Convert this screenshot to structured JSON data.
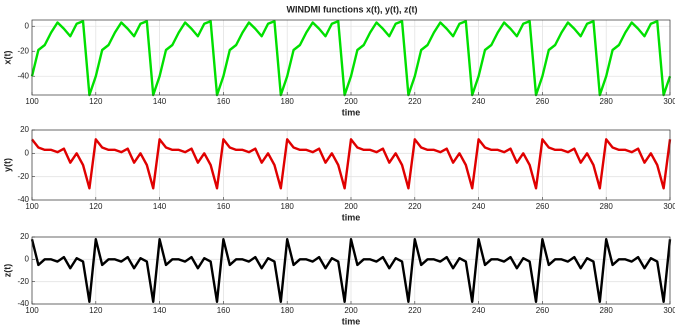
{
  "chart_data": [
    {
      "type": "line",
      "title": "WINDMI functions x(t), y(t), z(t)",
      "xlabel": "time",
      "ylabel": "x(t)",
      "xlim": [
        100,
        300
      ],
      "xticks": [
        100,
        120,
        140,
        160,
        180,
        200,
        220,
        240,
        260,
        280,
        300
      ],
      "ylim": [
        -55,
        5
      ],
      "yticks": [
        -40,
        -20,
        0
      ],
      "grid": true,
      "x": [
        100,
        102,
        104,
        106,
        108,
        110,
        112,
        114,
        116,
        118,
        120,
        122,
        124,
        126,
        128,
        130,
        132,
        134,
        136,
        138,
        140,
        142,
        144,
        146,
        148,
        150,
        152,
        154,
        156,
        158,
        160,
        162,
        164,
        166,
        168,
        170,
        172,
        174,
        176,
        178,
        180,
        182,
        184,
        186,
        188,
        190,
        192,
        194,
        196,
        198,
        200,
        202,
        204,
        206,
        208,
        210,
        212,
        214,
        216,
        218,
        220,
        222,
        224,
        226,
        228,
        230,
        232,
        234,
        236,
        238,
        240,
        242,
        244,
        246,
        248,
        250,
        252,
        254,
        256,
        258,
        260,
        262,
        264,
        266,
        268,
        270,
        272,
        274,
        276,
        278,
        280,
        282,
        284,
        286,
        288,
        290,
        292,
        294,
        296,
        298,
        300
      ],
      "series": [
        {
          "name": "x(t)",
          "color": "#00e000",
          "values": [
            -40,
            -19,
            -15,
            -5,
            3,
            -2,
            -8,
            2,
            4,
            -55,
            -40,
            -19,
            -15,
            -5,
            3,
            -2,
            -8,
            2,
            4,
            -55,
            -40,
            -19,
            -15,
            -5,
            3,
            -2,
            -8,
            2,
            4,
            -55,
            -40,
            -19,
            -15,
            -5,
            3,
            -2,
            -8,
            2,
            4,
            -55,
            -40,
            -19,
            -15,
            -5,
            3,
            -2,
            -8,
            2,
            4,
            -55,
            -40,
            -19,
            -15,
            -5,
            3,
            -2,
            -8,
            2,
            4,
            -55,
            -40,
            -19,
            -15,
            -5,
            3,
            -2,
            -8,
            2,
            4,
            -55,
            -40,
            -19,
            -15,
            -5,
            3,
            -2,
            -8,
            2,
            4,
            -55,
            -40,
            -19,
            -15,
            -5,
            3,
            -2,
            -8,
            2,
            4,
            -55,
            -40,
            -19,
            -15,
            -5,
            3,
            -2,
            -8,
            2,
            4,
            -55,
            -40
          ]
        }
      ]
    },
    {
      "type": "line",
      "xlabel": "time",
      "ylabel": "y(t)",
      "xlim": [
        100,
        300
      ],
      "xticks": [
        100,
        120,
        140,
        160,
        180,
        200,
        220,
        240,
        260,
        280,
        300
      ],
      "ylim": [
        -40,
        20
      ],
      "yticks": [
        -40,
        -20,
        0,
        20
      ],
      "grid": true,
      "x": [
        100,
        102,
        104,
        106,
        108,
        110,
        112,
        114,
        116,
        118,
        120,
        122,
        124,
        126,
        128,
        130,
        132,
        134,
        136,
        138,
        140,
        142,
        144,
        146,
        148,
        150,
        152,
        154,
        156,
        158,
        160,
        162,
        164,
        166,
        168,
        170,
        172,
        174,
        176,
        178,
        180,
        182,
        184,
        186,
        188,
        190,
        192,
        194,
        196,
        198,
        200,
        202,
        204,
        206,
        208,
        210,
        212,
        214,
        216,
        218,
        220,
        222,
        224,
        226,
        228,
        230,
        232,
        234,
        236,
        238,
        240,
        242,
        244,
        246,
        248,
        250,
        252,
        254,
        256,
        258,
        260,
        262,
        264,
        266,
        268,
        270,
        272,
        274,
        276,
        278,
        280,
        282,
        284,
        286,
        288,
        290,
        292,
        294,
        296,
        298,
        300
      ],
      "series": [
        {
          "name": "y(t)",
          "color": "#e00000",
          "values": [
            12,
            5,
            3,
            3,
            1,
            4,
            -8,
            0,
            -10,
            -30,
            12,
            5,
            3,
            3,
            1,
            4,
            -8,
            0,
            -10,
            -30,
            12,
            5,
            3,
            3,
            1,
            4,
            -8,
            0,
            -10,
            -30,
            12,
            5,
            3,
            3,
            1,
            4,
            -8,
            0,
            -10,
            -30,
            12,
            5,
            3,
            3,
            1,
            4,
            -8,
            0,
            -10,
            -30,
            12,
            5,
            3,
            3,
            1,
            4,
            -8,
            0,
            -10,
            -30,
            12,
            5,
            3,
            3,
            1,
            4,
            -8,
            0,
            -10,
            -30,
            12,
            5,
            3,
            3,
            1,
            4,
            -8,
            0,
            -10,
            -30,
            12,
            5,
            3,
            3,
            1,
            4,
            -8,
            0,
            -10,
            -30,
            12,
            5,
            3,
            3,
            1,
            4,
            -8,
            0,
            -10,
            -30,
            12
          ]
        }
      ]
    },
    {
      "type": "line",
      "xlabel": "time",
      "ylabel": "z(t)",
      "xlim": [
        100,
        300
      ],
      "xticks": [
        100,
        120,
        140,
        160,
        180,
        200,
        220,
        240,
        260,
        280,
        300
      ],
      "ylim": [
        -40,
        20
      ],
      "yticks": [
        -40,
        -20,
        0,
        20
      ],
      "grid": true,
      "x": [
        100,
        102,
        104,
        106,
        108,
        110,
        112,
        114,
        116,
        118,
        120,
        122,
        124,
        126,
        128,
        130,
        132,
        134,
        136,
        138,
        140,
        142,
        144,
        146,
        148,
        150,
        152,
        154,
        156,
        158,
        160,
        162,
        164,
        166,
        168,
        170,
        172,
        174,
        176,
        178,
        180,
        182,
        184,
        186,
        188,
        190,
        192,
        194,
        196,
        198,
        200,
        202,
        204,
        206,
        208,
        210,
        212,
        214,
        216,
        218,
        220,
        222,
        224,
        226,
        228,
        230,
        232,
        234,
        236,
        238,
        240,
        242,
        244,
        246,
        248,
        250,
        252,
        254,
        256,
        258,
        260,
        262,
        264,
        266,
        268,
        270,
        272,
        274,
        276,
        278,
        280,
        282,
        284,
        286,
        288,
        290,
        292,
        294,
        296,
        298,
        300
      ],
      "series": [
        {
          "name": "z(t)",
          "color": "#000000",
          "values": [
            18,
            -5,
            0,
            0,
            -2,
            2,
            -8,
            1,
            -2,
            -38,
            18,
            -5,
            0,
            0,
            -2,
            2,
            -8,
            1,
            -2,
            -38,
            18,
            -5,
            0,
            0,
            -2,
            2,
            -8,
            1,
            -2,
            -38,
            18,
            -5,
            0,
            0,
            -2,
            2,
            -8,
            1,
            -2,
            -38,
            18,
            -5,
            0,
            0,
            -2,
            2,
            -8,
            1,
            -2,
            -38,
            18,
            -5,
            0,
            0,
            -2,
            2,
            -8,
            1,
            -2,
            -38,
            18,
            -5,
            0,
            0,
            -2,
            2,
            -8,
            1,
            -2,
            -38,
            18,
            -5,
            0,
            0,
            -2,
            2,
            -8,
            1,
            -2,
            -38,
            18,
            -5,
            0,
            0,
            -2,
            2,
            -8,
            1,
            -2,
            -38,
            18,
            -5,
            0,
            0,
            -2,
            2,
            -8,
            1,
            -2,
            -38,
            18
          ]
        }
      ]
    }
  ]
}
